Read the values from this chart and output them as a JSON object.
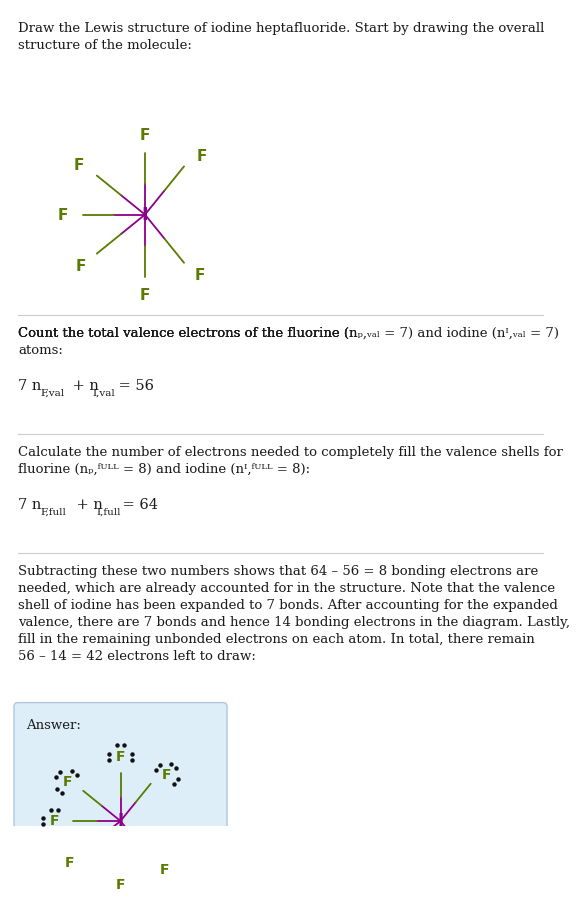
{
  "title_text": "Draw the Lewis structure of iodine heptafluoride. Start by drawing the overall\nstructure of the molecule:",
  "section1_intro": "Count the total valence electrons of the fluorine (",
  "section1_mid": " = 7) and iodine (",
  "section1_end": " = 7)\natoms:",
  "section1_eq_plain": "7 n",
  "section1_eq_sub1": "F,val",
  "section1_eq_mid": " + n",
  "section1_eq_sub2": "I,val",
  "section1_eq_end": " = 56",
  "section2_intro": "Calculate the number of electrons needed to completely fill the valence shells for\nfluorine (",
  "section2_mid": " = 8) and iodine (",
  "section2_end": " = 8):",
  "section2_eq_plain": "7 n",
  "section2_eq_sub1": "F,full",
  "section2_eq_mid": " + n",
  "section2_eq_sub2": "I,full",
  "section2_eq_end": " = 64",
  "section3_text": "Subtracting these two numbers shows that 64 – 56 = 8 bonding electrons are\nneeded, which are already accounted for in the structure. Note that the valence\nshell of iodine has been expanded to 7 bonds. After accounting for the expanded\nvalence, there are 7 bonds and hence 14 bonding electrons in the diagram. Lastly,\nfill in the remaining unbonded electrons on each atom. In total, there remain\n56 – 14 = 42 electrons left to draw:",
  "answer_label": "Answer:",
  "bg_color": "#ffffff",
  "answer_bg": "#deeef8",
  "answer_border": "#b0c8d8",
  "F_color": "#5a7a00",
  "I_color": "#8b008b",
  "bond_green": "#5a7a00",
  "bond_purple": "#8b008b",
  "text_color": "#1a1a1a",
  "angles_deg": [
    90,
    141,
    180,
    219,
    270,
    309,
    51
  ],
  "font_size_body": 9.5,
  "font_size_atom": 12,
  "dot_color": "#111111"
}
